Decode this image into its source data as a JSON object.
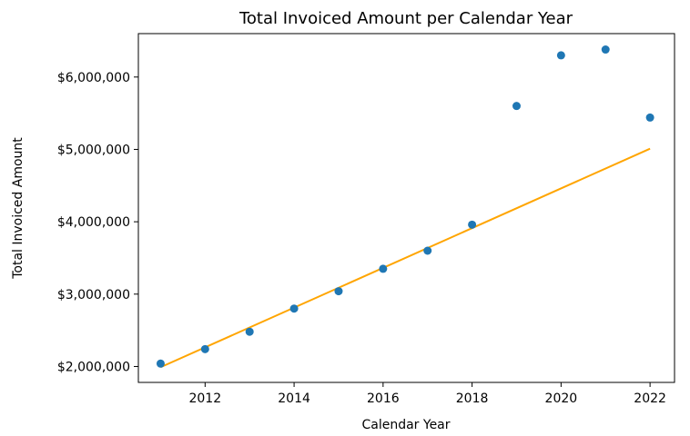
{
  "chart_data": {
    "type": "scatter",
    "title": "Total Invoiced Amount per Calendar Year",
    "xlabel": "Calendar Year",
    "ylabel": "Total Invoiced Amount",
    "xlim": [
      2010.5,
      2022.55
    ],
    "ylim": [
      1780000,
      6600000
    ],
    "x_ticks": [
      2012,
      2014,
      2016,
      2018,
      2020,
      2022
    ],
    "x_tick_labels": [
      "2012",
      "2014",
      "2016",
      "2018",
      "2020",
      "2022"
    ],
    "y_ticks": [
      2000000,
      3000000,
      4000000,
      5000000,
      6000000
    ],
    "y_tick_labels": [
      "$2,000,000",
      "$3,000,000",
      "$4,000,000",
      "$5,000,000",
      "$6,000,000"
    ],
    "grid": false,
    "series": [
      {
        "type": "scatter",
        "color": "#1f77b4",
        "points": [
          {
            "x": 2011,
            "y": 2040000
          },
          {
            "x": 2012,
            "y": 2240000
          },
          {
            "x": 2013,
            "y": 2480000
          },
          {
            "x": 2014,
            "y": 2800000
          },
          {
            "x": 2015,
            "y": 3040000
          },
          {
            "x": 2016,
            "y": 3350000
          },
          {
            "x": 2017,
            "y": 3600000
          },
          {
            "x": 2018,
            "y": 3960000
          },
          {
            "x": 2019,
            "y": 5600000
          },
          {
            "x": 2020,
            "y": 6300000
          },
          {
            "x": 2021,
            "y": 6380000
          },
          {
            "x": 2022,
            "y": 5440000
          }
        ]
      },
      {
        "type": "line",
        "color": "#ffa500",
        "points": [
          {
            "x": 2011,
            "y": 1990000
          },
          {
            "x": 2022,
            "y": 5010000
          }
        ]
      }
    ]
  }
}
